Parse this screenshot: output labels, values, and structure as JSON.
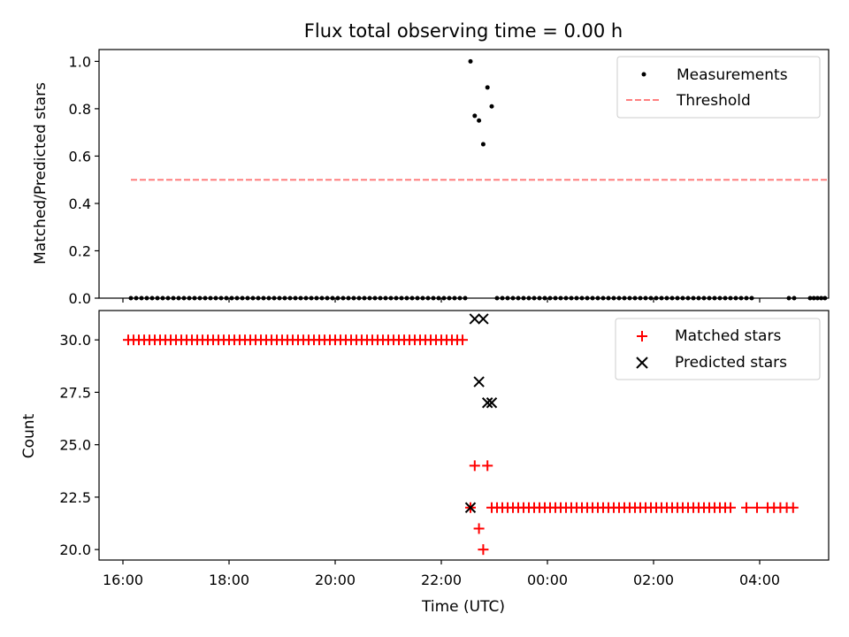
{
  "chart_data": {
    "type": "scatter",
    "title": "Flux total observing time = 0.00 h",
    "xlabel": "Time (UTC)",
    "xtick_labels": [
      "16:00",
      "18:00",
      "20:00",
      "22:00",
      "00:00",
      "02:00",
      "04:00"
    ],
    "xtick_hours": [
      16,
      18,
      20,
      22,
      24,
      26,
      28
    ],
    "xlim_hours": [
      15.55,
      29.3
    ],
    "panels": [
      {
        "ylabel": "Matched/Predicted stars",
        "ylim": [
          0,
          1.05
        ],
        "yticks": [
          0.0,
          0.2,
          0.4,
          0.6,
          0.8,
          1.0
        ],
        "ytick_labels": [
          "0.0",
          "0.2",
          "0.4",
          "0.6",
          "0.8",
          "1.0"
        ],
        "legend_position": "top-right",
        "series": [
          {
            "name": "Measurements",
            "marker": "dot",
            "color": "#000000",
            "zero_runs": [
              {
                "start": 16.15,
                "end": 22.5,
                "step": 0.1
              },
              {
                "start": 23.05,
                "end": 27.9,
                "step": 0.1
              },
              {
                "start": 28.55,
                "end": 28.65,
                "step": 0.1
              },
              {
                "start": 28.95,
                "end": 29.25,
                "step": 0.07
              }
            ],
            "points": [
              {
                "x": 22.55,
                "y": 1.0
              },
              {
                "x": 22.63,
                "y": 0.77
              },
              {
                "x": 22.71,
                "y": 0.75
              },
              {
                "x": 22.79,
                "y": 0.65
              },
              {
                "x": 22.87,
                "y": 0.89
              },
              {
                "x": 22.95,
                "y": 0.81
              }
            ]
          },
          {
            "name": "Threshold",
            "style": "dashed",
            "color": "#ff7f7f",
            "x": [
              16.15,
              29.3
            ],
            "y": [
              0.5,
              0.5
            ]
          }
        ]
      },
      {
        "ylabel": "Count",
        "ylim": [
          19.5,
          31.4
        ],
        "yticks": [
          20.0,
          22.5,
          25.0,
          27.5,
          30.0
        ],
        "ytick_labels": [
          "20.0",
          "22.5",
          "25.0",
          "27.5",
          "30.0"
        ],
        "legend_position": "top-right",
        "series": [
          {
            "name": "Matched stars",
            "marker": "plus",
            "color": "#ff0000",
            "runs": [
              {
                "start": 16.1,
                "end": 22.45,
                "step": 0.1,
                "y": 30
              },
              {
                "start": 22.95,
                "end": 27.5,
                "step": 0.1,
                "y": 22
              },
              {
                "start": 27.75,
                "end": 28.0,
                "step": 0.2,
                "y": 22
              },
              {
                "start": 28.15,
                "end": 28.65,
                "step": 0.12,
                "y": 22
              }
            ],
            "points": [
              {
                "x": 22.55,
                "y": 22
              },
              {
                "x": 22.63,
                "y": 24
              },
              {
                "x": 22.71,
                "y": 21
              },
              {
                "x": 22.79,
                "y": 20
              },
              {
                "x": 22.87,
                "y": 24
              }
            ]
          },
          {
            "name": "Predicted stars",
            "marker": "x",
            "color": "#000000",
            "points": [
              {
                "x": 22.55,
                "y": 22
              },
              {
                "x": 22.63,
                "y": 31
              },
              {
                "x": 22.71,
                "y": 28
              },
              {
                "x": 22.79,
                "y": 31
              },
              {
                "x": 22.87,
                "y": 27
              },
              {
                "x": 22.95,
                "y": 27
              }
            ]
          }
        ]
      }
    ]
  }
}
